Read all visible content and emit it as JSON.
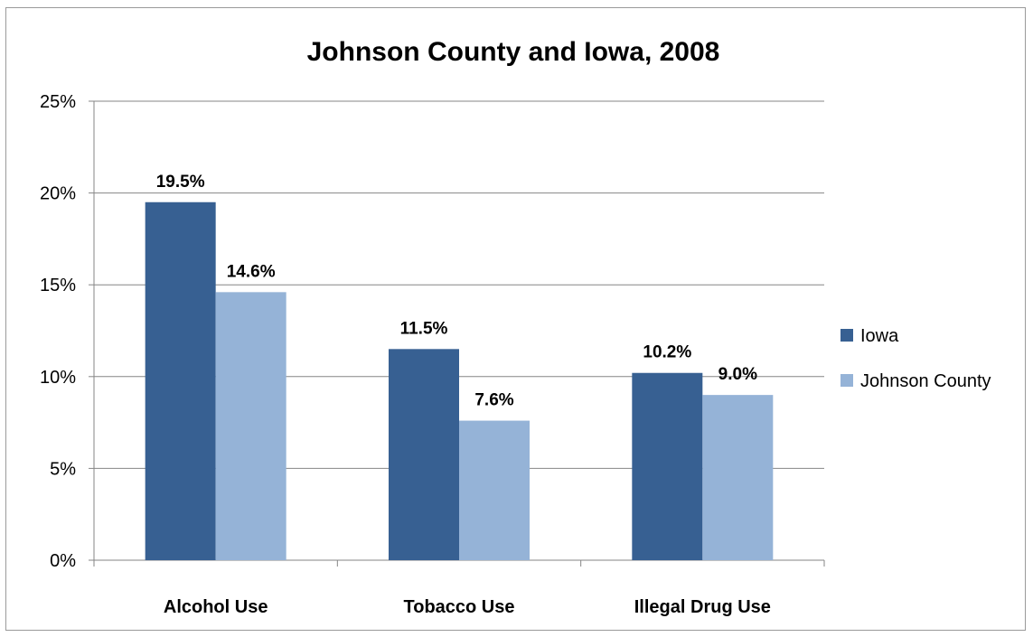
{
  "chart_data": {
    "type": "bar",
    "title": "Johnson County and Iowa, 2008",
    "xlabel": "",
    "ylabel": "",
    "categories": [
      "Alcohol Use",
      "Tobacco Use",
      "Illegal Drug Use"
    ],
    "series": [
      {
        "name": "Iowa",
        "values": [
          19.5,
          11.5,
          10.2
        ],
        "labels": [
          "19.5%",
          "11.5%",
          "10.2%"
        ],
        "color": "#376092"
      },
      {
        "name": "Johnson County",
        "values": [
          14.6,
          7.6,
          9.0
        ],
        "labels": [
          "14.6%",
          "7.6%",
          "9.0%"
        ],
        "color": "#95b3d7"
      }
    ],
    "ylim": [
      0,
      25
    ],
    "yticks": [
      0,
      5,
      10,
      15,
      20,
      25
    ],
    "ytick_labels": [
      "0%",
      "5%",
      "10%",
      "15%",
      "20%",
      "25%"
    ],
    "grid": true,
    "legend_position": "right"
  }
}
